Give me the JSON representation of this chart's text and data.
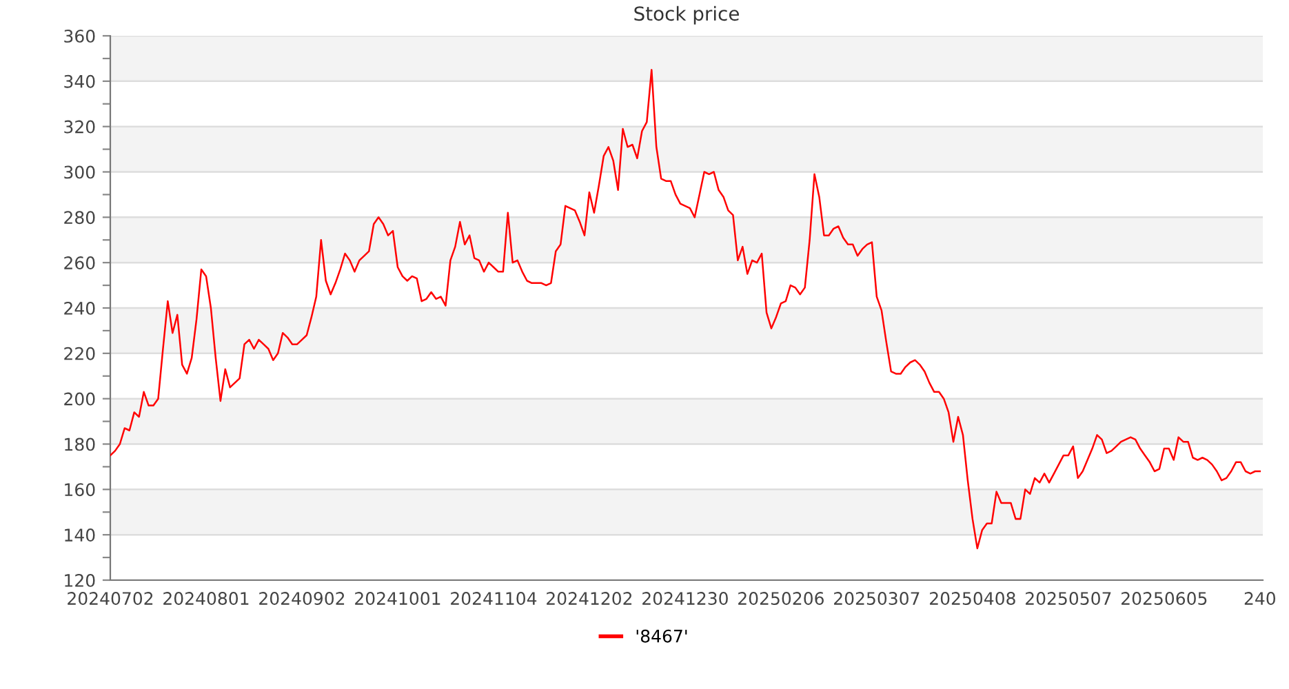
{
  "chart_data": {
    "type": "line",
    "title": "Stock price",
    "categories": [
      "20240702",
      null,
      null,
      null,
      null,
      null,
      null,
      null,
      null,
      null,
      null,
      null,
      null,
      null,
      null,
      null,
      null,
      null,
      null,
      null,
      "20240801",
      null,
      null,
      null,
      null,
      null,
      null,
      null,
      null,
      null,
      null,
      null,
      null,
      null,
      null,
      null,
      null,
      null,
      null,
      null,
      "20240902",
      null,
      null,
      null,
      null,
      null,
      null,
      null,
      null,
      null,
      null,
      null,
      null,
      null,
      null,
      null,
      null,
      null,
      null,
      null,
      "20241001",
      null,
      null,
      null,
      null,
      null,
      null,
      null,
      null,
      null,
      null,
      null,
      null,
      null,
      null,
      null,
      null,
      null,
      null,
      null,
      "20241104",
      null,
      null,
      null,
      null,
      null,
      null,
      null,
      null,
      null,
      null,
      null,
      null,
      null,
      null,
      null,
      null,
      null,
      null,
      null,
      "20241202",
      null,
      null,
      null,
      null,
      null,
      null,
      null,
      null,
      null,
      null,
      null,
      null,
      null,
      null,
      null,
      null,
      null,
      null,
      null,
      "20241230",
      null,
      null,
      null,
      null,
      null,
      null,
      null,
      null,
      null,
      null,
      null,
      null,
      null,
      null,
      null,
      null,
      null,
      null,
      null,
      "20250206",
      null,
      null,
      null,
      null,
      null,
      null,
      null,
      null,
      null,
      null,
      null,
      null,
      null,
      null,
      null,
      null,
      null,
      null,
      null,
      "20250307",
      null,
      null,
      null,
      null,
      null,
      null,
      null,
      null,
      null,
      null,
      null,
      null,
      null,
      null,
      null,
      null,
      null,
      null,
      null,
      "20250408",
      null,
      null,
      null,
      null,
      null,
      null,
      null,
      null,
      null,
      null,
      null,
      null,
      null,
      null,
      null,
      null,
      null,
      null,
      null,
      "20250507",
      null,
      null,
      null,
      null,
      null,
      null,
      null,
      null,
      null,
      null,
      null,
      null,
      null,
      null,
      null,
      null,
      null,
      null,
      null,
      "20250605",
      null,
      null,
      null,
      null,
      null,
      null,
      null,
      null,
      null,
      null,
      null,
      null,
      null,
      null,
      null,
      null,
      null,
      null,
      null,
      "240"
    ],
    "series": [
      {
        "name": "'8467'",
        "color": "#ff0000",
        "values": [
          175,
          177,
          180,
          187,
          186,
          194,
          192,
          203,
          197,
          197,
          200,
          222,
          243,
          229,
          237,
          215,
          211,
          218,
          235,
          257,
          254,
          240,
          218,
          199,
          213,
          205,
          207,
          209,
          224,
          226,
          222,
          226,
          224,
          222,
          217,
          220,
          229,
          227,
          224,
          224,
          226,
          228,
          236,
          245,
          270,
          252,
          246,
          251,
          257,
          264,
          261,
          256,
          261,
          263,
          265,
          277,
          280,
          277,
          272,
          274,
          258,
          254,
          252,
          254,
          253,
          243,
          244,
          247,
          244,
          245,
          241,
          261,
          267,
          278,
          268,
          272,
          262,
          261,
          256,
          260,
          258,
          256,
          256,
          282,
          260,
          261,
          256,
          252,
          251,
          251,
          251,
          250,
          251,
          265,
          268,
          285,
          284,
          283,
          278,
          272,
          291,
          282,
          294,
          307,
          311,
          305,
          292,
          319,
          311,
          312,
          306,
          318,
          322,
          345,
          311,
          297,
          296,
          296,
          290,
          286,
          285,
          284,
          280,
          290,
          300,
          299,
          300,
          292,
          289,
          283,
          281,
          261,
          267,
          255,
          261,
          260,
          264,
          238,
          231,
          236,
          242,
          243,
          250,
          249,
          246,
          249,
          270,
          299,
          289,
          272,
          272,
          275,
          276,
          271,
          268,
          268,
          263,
          266,
          268,
          269,
          245,
          239,
          225,
          212,
          211,
          211,
          214,
          216,
          217,
          215,
          212,
          207,
          203,
          203,
          200,
          194,
          181,
          192,
          184,
          164,
          147,
          134,
          142,
          145,
          145,
          159,
          154,
          154,
          154,
          147,
          147,
          160,
          158,
          165,
          163,
          167,
          163,
          167,
          171,
          175,
          175,
          179,
          165,
          168,
          173,
          178,
          184,
          182,
          176,
          177,
          179,
          181,
          182,
          183,
          182,
          178,
          175,
          172,
          168,
          169,
          178,
          178,
          173,
          183,
          181,
          181,
          174,
          173,
          174,
          173,
          171,
          168,
          164,
          165,
          168,
          172,
          172,
          168,
          167,
          168,
          168
        ]
      }
    ],
    "ylim": [
      120,
      360
    ],
    "yticks": [
      120,
      {
        "value": 130,
        "label": null
      },
      140,
      {
        "value": 150,
        "label": null
      },
      160,
      {
        "value": 170,
        "label": null
      },
      180,
      {
        "value": 190,
        "label": null
      },
      200,
      {
        "value": 210,
        "label": null
      },
      220,
      {
        "value": 230,
        "label": null
      },
      240,
      {
        "value": 250,
        "label": null
      },
      260,
      {
        "value": 270,
        "label": null
      },
      280,
      {
        "value": 290,
        "label": null
      },
      300,
      {
        "value": 310,
        "label": null
      },
      320,
      {
        "value": 330,
        "label": null
      },
      340,
      {
        "value": 350,
        "label": null
      },
      360
    ],
    "grid": "y",
    "legend": "bottom",
    "marker": "none",
    "line_style": "solid"
  }
}
